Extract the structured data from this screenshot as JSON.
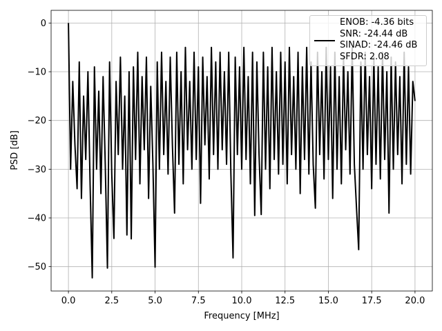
{
  "chart_data": {
    "type": "line",
    "x_label": "Frequency [MHz]",
    "y_label": "PSD [dB]",
    "x": [
      0,
      0.125,
      0.25,
      0.375,
      0.5,
      0.625,
      0.75,
      0.875,
      1,
      1.125,
      1.25,
      1.375,
      1.5,
      1.625,
      1.75,
      1.875,
      2,
      2.125,
      2.25,
      2.375,
      2.5,
      2.625,
      2.75,
      2.875,
      3,
      3.125,
      3.25,
      3.375,
      3.5,
      3.625,
      3.75,
      3.875,
      4,
      4.125,
      4.25,
      4.375,
      4.5,
      4.625,
      4.75,
      4.875,
      5,
      5.125,
      5.25,
      5.375,
      5.5,
      5.625,
      5.75,
      5.875,
      6,
      6.125,
      6.25,
      6.375,
      6.5,
      6.625,
      6.75,
      6.875,
      7,
      7.125,
      7.25,
      7.375,
      7.5,
      7.625,
      7.75,
      7.875,
      8,
      8.125,
      8.25,
      8.375,
      8.5,
      8.625,
      8.75,
      8.875,
      9,
      9.125,
      9.25,
      9.375,
      9.5,
      9.625,
      9.75,
      9.875,
      10,
      10.125,
      10.25,
      10.375,
      10.5,
      10.625,
      10.75,
      10.875,
      11,
      11.125,
      11.25,
      11.375,
      11.5,
      11.625,
      11.75,
      11.875,
      12,
      12.125,
      12.25,
      12.375,
      12.5,
      12.625,
      12.75,
      12.875,
      13,
      13.125,
      13.25,
      13.375,
      13.5,
      13.625,
      13.75,
      13.875,
      14,
      14.125,
      14.25,
      14.375,
      14.5,
      14.625,
      14.75,
      14.875,
      15,
      15.125,
      15.25,
      15.375,
      15.5,
      15.625,
      15.75,
      15.875,
      16,
      16.125,
      16.25,
      16.375,
      16.5,
      16.625,
      16.75,
      16.875,
      17,
      17.125,
      17.25,
      17.375,
      17.5,
      17.625,
      17.75,
      17.875,
      18,
      18.125,
      18.25,
      18.375,
      18.5,
      18.625,
      18.75,
      18.875,
      19,
      19.125,
      19.25,
      19.375,
      19.5,
      19.625,
      19.75,
      19.875,
      20
    ],
    "series": [
      {
        "name": "ENOB: -4.36 bits\nSNR: -24.44 dB\nSINAD: -24.46 dB\nSFDR: 2.08",
        "color": "#000000",
        "values": [
          0,
          -30,
          -12,
          -25,
          -34,
          -8,
          -36,
          -15,
          -28,
          -10,
          -33,
          -52.3,
          -9,
          -30,
          -14,
          -35,
          -11,
          -29,
          -50.3,
          -8,
          -31,
          -44.2,
          -12,
          -27,
          -7,
          -30,
          -15,
          -43.5,
          -10,
          -44.3,
          -9,
          -28,
          -6,
          -33,
          -11,
          -26,
          -7,
          -36,
          -13,
          -29,
          -50.1,
          -8,
          -30,
          -6,
          -27,
          -12,
          -31,
          -7,
          -25,
          -39,
          -6,
          -29,
          -10,
          -33,
          -5,
          -26,
          -12,
          -30,
          -6,
          -28,
          -9,
          -37,
          -7,
          -25,
          -11,
          -32,
          -5,
          -27,
          -8,
          -30,
          -6,
          -26,
          -10,
          -29,
          -6,
          -31,
          -48.2,
          -7,
          -27,
          -9,
          -30,
          -5,
          -28,
          -11,
          -33,
          -6,
          -39.5,
          -8,
          -27,
          -39.3,
          -6,
          -30,
          -9,
          -34,
          -5,
          -28,
          -10,
          -31,
          -6,
          -29,
          -8,
          -33,
          -5,
          -27,
          -11,
          -30,
          -6,
          -35,
          -9,
          -28,
          -5,
          -31,
          -8,
          -29,
          -38,
          -6,
          -27,
          -10,
          -32,
          -5,
          -28,
          -9,
          -36,
          -6,
          -30,
          -11,
          -33,
          -7,
          -26,
          -10,
          -31,
          -5,
          -29,
          -38,
          -46.5,
          -8,
          -30,
          -6,
          -27,
          -11,
          -34,
          -7,
          -29,
          -9,
          -32,
          -6,
          -28,
          -10,
          -39,
          -7,
          -30,
          -8,
          -27,
          -11,
          -33,
          -6,
          -29,
          -9,
          -31,
          -12,
          -16
        ]
      }
    ],
    "xlim": [
      -1,
      21
    ],
    "ylim": [
      -55,
      2.6
    ],
    "xticks": [
      {
        "value": 0,
        "label": "0.0"
      },
      {
        "value": 2.5,
        "label": "2.5"
      },
      {
        "value": 5,
        "label": "5.0"
      },
      {
        "value": 7.5,
        "label": "7.5"
      },
      {
        "value": 10,
        "label": "10.0"
      },
      {
        "value": 12.5,
        "label": "12.5"
      },
      {
        "value": 15,
        "label": "15.0"
      },
      {
        "value": 17.5,
        "label": "17.5"
      },
      {
        "value": 20,
        "label": "20.0"
      }
    ],
    "yticks": [
      0,
      {
        "value": -10,
        "label": "−10"
      },
      {
        "value": -20,
        "label": "−20"
      },
      {
        "value": -30,
        "label": "−30"
      },
      {
        "value": -40,
        "label": "−40"
      },
      {
        "value": -50,
        "label": "−50"
      }
    ],
    "grid": true,
    "legend": "upper right"
  }
}
